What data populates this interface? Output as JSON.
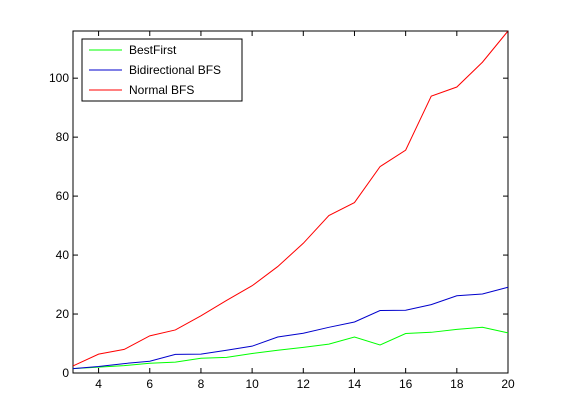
{
  "chart_data": {
    "type": "line",
    "title": "",
    "xlabel": "",
    "ylabel": "",
    "xlim": [
      3,
      20
    ],
    "ylim": [
      0,
      116
    ],
    "grid": false,
    "legend_position": "top-left",
    "x": [
      3,
      4,
      5,
      6,
      7,
      8,
      9,
      10,
      11,
      12,
      13,
      14,
      15,
      16,
      17,
      18,
      19,
      20
    ],
    "x_ticks": [
      4,
      6,
      8,
      10,
      12,
      14,
      16,
      18,
      20
    ],
    "y_ticks": [
      0,
      20,
      40,
      60,
      80,
      100
    ],
    "series": [
      {
        "name": "BestFirst",
        "color": "#00ff00",
        "values": [
          1.5,
          2.0,
          2.5,
          3.3,
          3.7,
          5.0,
          5.3,
          6.6,
          7.7,
          8.7,
          9.8,
          12.2,
          9.5,
          13.4,
          13.8,
          14.8,
          15.5,
          13.6
        ]
      },
      {
        "name": "Bidirectional BFS",
        "color": "#0000cc",
        "values": [
          1.5,
          2.2,
          3.2,
          4.0,
          6.3,
          6.4,
          7.7,
          9.1,
          12.2,
          13.5,
          15.5,
          17.3,
          21.2,
          21.3,
          23.2,
          26.2,
          26.8,
          29.1
        ]
      },
      {
        "name": "Normal BFS",
        "color": "#ff0000",
        "values": [
          2.4,
          6.4,
          8.0,
          12.6,
          14.6,
          19.4,
          24.6,
          29.6,
          36.1,
          44.0,
          53.4,
          57.8,
          70.0,
          75.6,
          93.9,
          97.0,
          105.4,
          116.0
        ]
      }
    ]
  }
}
